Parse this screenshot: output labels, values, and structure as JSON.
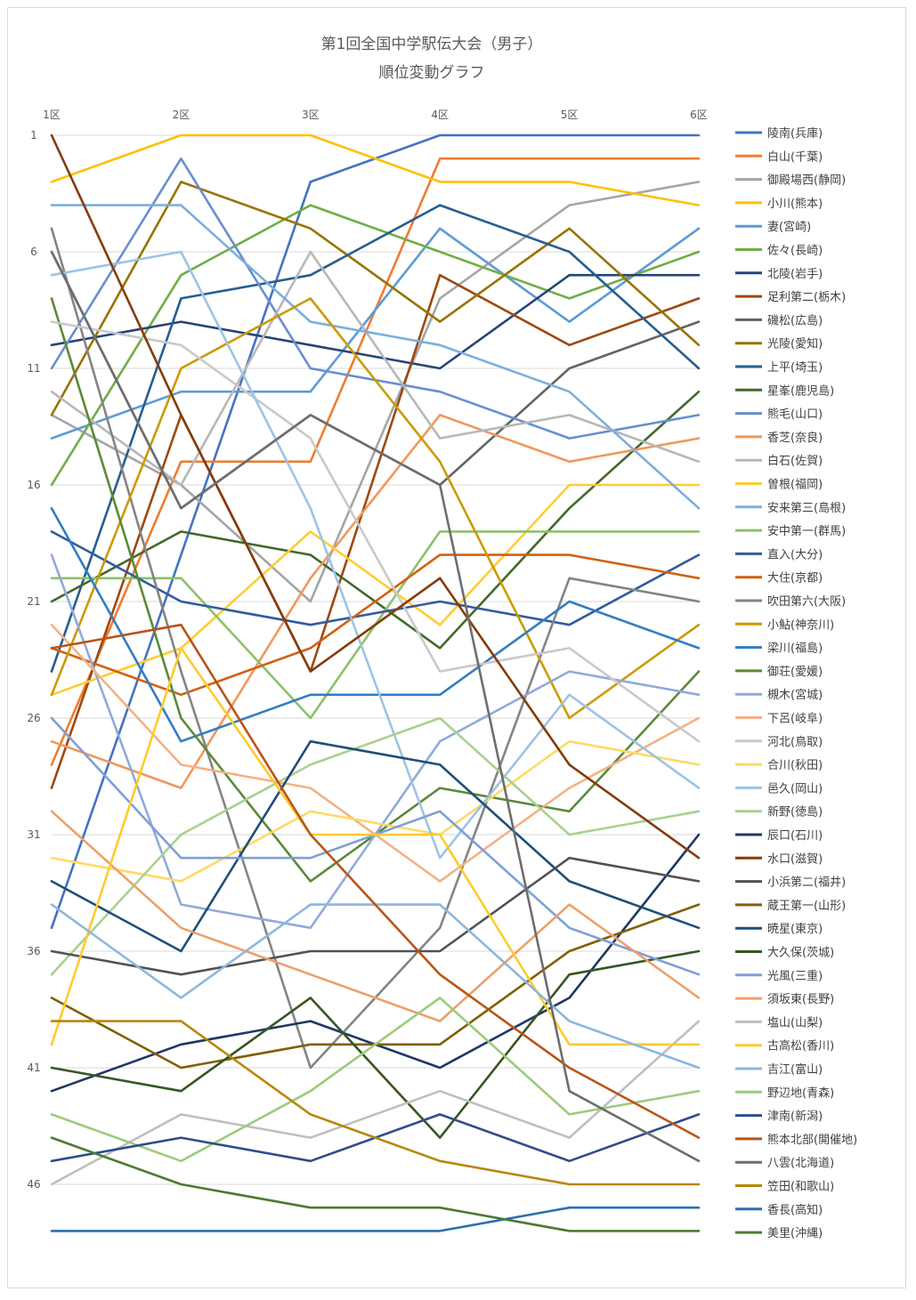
{
  "chart_data": {
    "type": "line",
    "title": "第1回全国中学駅伝大会（男子）",
    "subtitle": "順位変動グラフ",
    "categories": [
      "1区",
      "2区",
      "3区",
      "4区",
      "5区",
      "6区"
    ],
    "y_ticks": [
      1,
      6,
      11,
      16,
      21,
      26,
      31,
      36,
      41,
      46
    ],
    "ylim": [
      1,
      47
    ],
    "y_inverted": true,
    "grid": true,
    "legend_position": "right",
    "series": [
      {
        "name": "陵南(兵庫)",
        "color": "#4472C4",
        "values": [
          35,
          19,
          3,
          1,
          1,
          1
        ]
      },
      {
        "name": "白山(千葉)",
        "color": "#ED7D31",
        "values": [
          28,
          15,
          15,
          2,
          2,
          2
        ]
      },
      {
        "name": "御殿場西(静岡)",
        "color": "#A5A5A5",
        "values": [
          13,
          16,
          21,
          8,
          4,
          3
        ]
      },
      {
        "name": "小川(熊本)",
        "color": "#FFC000",
        "values": [
          3,
          1,
          1,
          3,
          3,
          4
        ]
      },
      {
        "name": "妻(宮崎)",
        "color": "#5B9BD5",
        "values": [
          14,
          12,
          12,
          5,
          9,
          5
        ]
      },
      {
        "name": "佐々(長崎)",
        "color": "#70AD47",
        "values": [
          16,
          7,
          4,
          6,
          8,
          6
        ]
      },
      {
        "name": "北陵(岩手)",
        "color": "#264478",
        "values": [
          10,
          9,
          10,
          11,
          7,
          7
        ]
      },
      {
        "name": "足利第二(栃木)",
        "color": "#9E480E",
        "values": [
          29,
          13,
          24,
          7,
          10,
          8
        ]
      },
      {
        "name": "磯松(広島)",
        "color": "#636363",
        "values": [
          6,
          17,
          13,
          16,
          11,
          9
        ]
      },
      {
        "name": "光陵(愛知)",
        "color": "#997300",
        "values": [
          13,
          3,
          5,
          9,
          5,
          10
        ]
      },
      {
        "name": "上平(埼玉)",
        "color": "#255E91",
        "values": [
          24,
          8,
          7,
          4,
          6,
          11
        ]
      },
      {
        "name": "星峯(鹿児島)",
        "color": "#43682B",
        "values": [
          21,
          18,
          19,
          23,
          17,
          12
        ]
      },
      {
        "name": "熊毛(山口)",
        "color": "#698ED0",
        "values": [
          11,
          2,
          11,
          12,
          14,
          13
        ]
      },
      {
        "name": "香芝(奈良)",
        "color": "#F1975A",
        "values": [
          27,
          29,
          20,
          13,
          15,
          14
        ]
      },
      {
        "name": "白石(佐賀)",
        "color": "#B7B7B7",
        "values": [
          12,
          16,
          6,
          14,
          13,
          15
        ]
      },
      {
        "name": "曽根(福岡)",
        "color": "#FFCD33",
        "values": [
          25,
          23,
          18,
          22,
          16,
          16
        ]
      },
      {
        "name": "安来第三(島根)",
        "color": "#7CAFDD",
        "values": [
          4,
          4,
          9,
          10,
          12,
          17
        ]
      },
      {
        "name": "安中第一(群馬)",
        "color": "#8CC168",
        "values": [
          20,
          20,
          26,
          18,
          18,
          18
        ]
      },
      {
        "name": "直入(大分)",
        "color": "#335AA1",
        "values": [
          18,
          21,
          22,
          21,
          22,
          19
        ]
      },
      {
        "name": "大住(京都)",
        "color": "#D26012",
        "values": [
          23,
          25,
          23,
          19,
          19,
          20
        ]
      },
      {
        "name": "吹田第六(大阪)",
        "color": "#848484",
        "values": [
          5,
          24,
          41,
          35,
          20,
          21
        ]
      },
      {
        "name": "小鮎(神奈川)",
        "color": "#CC9A00",
        "values": [
          25,
          11,
          8,
          15,
          26,
          22
        ]
      },
      {
        "name": "梁川(福島)",
        "color": "#327DC2",
        "values": [
          17,
          27,
          25,
          25,
          21,
          23
        ]
      },
      {
        "name": "御荘(愛媛)",
        "color": "#5A8A39",
        "values": [
          8,
          26,
          33,
          29,
          30,
          24
        ]
      },
      {
        "name": "槻木(宮城)",
        "color": "#8FAADC",
        "values": [
          19,
          34,
          35,
          27,
          24,
          25
        ]
      },
      {
        "name": "下呂(岐阜)",
        "color": "#F4B183",
        "values": [
          22,
          28,
          29,
          33,
          29,
          26
        ]
      },
      {
        "name": "河北(鳥取)",
        "color": "#C9C9C9",
        "values": [
          9,
          10,
          14,
          24,
          23,
          27
        ]
      },
      {
        "name": "合川(秋田)",
        "color": "#FFD966",
        "values": [
          32,
          33,
          30,
          31,
          27,
          28
        ]
      },
      {
        "name": "邑久(岡山)",
        "color": "#9DC3E6",
        "values": [
          7,
          6,
          17,
          32,
          25,
          29
        ]
      },
      {
        "name": "新野(徳島)",
        "color": "#A9D18E",
        "values": [
          37,
          31,
          28,
          26,
          31,
          30
        ]
      },
      {
        "name": "辰口(石川)",
        "color": "#1F3864",
        "values": [
          42,
          40,
          39,
          41,
          38,
          31
        ]
      },
      {
        "name": "水口(滋賀)",
        "color": "#843C0C",
        "values": [
          1,
          13,
          24,
          20,
          28,
          32
        ]
      },
      {
        "name": "小浜第二(福井)",
        "color": "#525252",
        "values": [
          36,
          37,
          36,
          36,
          32,
          33
        ]
      },
      {
        "name": "蔵王第一(山形)",
        "color": "#7F6000",
        "values": [
          38,
          41,
          40,
          40,
          36,
          34
        ]
      },
      {
        "name": "暁星(東京)",
        "color": "#1F4E79",
        "values": [
          33,
          36,
          27,
          28,
          33,
          35
        ]
      },
      {
        "name": "大久保(茨城)",
        "color": "#375623",
        "values": [
          41,
          42,
          38,
          44,
          37,
          36
        ]
      },
      {
        "name": "光風(三重)",
        "color": "#7F9FD6",
        "values": [
          26,
          32,
          32,
          30,
          35,
          37
        ]
      },
      {
        "name": "須坂東(長野)",
        "color": "#EE9F6A",
        "values": [
          30,
          35,
          37,
          39,
          34,
          38
        ]
      },
      {
        "name": "塩山(山梨)",
        "color": "#BFBFBF",
        "values": [
          46,
          43,
          44,
          42,
          44,
          39
        ]
      },
      {
        "name": "古高松(香川)",
        "color": "#FFCA2C",
        "values": [
          40,
          23,
          31,
          31,
          40,
          40
        ]
      },
      {
        "name": "吉江(富山)",
        "color": "#8DB6DF",
        "values": [
          34,
          38,
          34,
          34,
          39,
          41
        ]
      },
      {
        "name": "野辺地(青森)",
        "color": "#9ACC7A",
        "values": [
          43,
          45,
          42,
          38,
          43,
          42
        ]
      },
      {
        "name": "津南(新潟)",
        "color": "#2E4D8A",
        "values": [
          45,
          44,
          45,
          43,
          45,
          43
        ]
      },
      {
        "name": "熊本北部(開催地)",
        "color": "#BA5416",
        "values": [
          23,
          22,
          31,
          37,
          41,
          44
        ]
      },
      {
        "name": "八雲(北海道)",
        "color": "#6E6E6E",
        "values": [
          6,
          17,
          13,
          16,
          42,
          45
        ]
      },
      {
        "name": "笠田(和歌山)",
        "color": "#B8860B",
        "values": [
          39,
          39,
          43,
          45,
          46,
          46
        ]
      },
      {
        "name": "香長(高知)",
        "color": "#2A6FAF",
        "values": [
          48,
          48,
          48,
          48,
          47,
          47
        ]
      },
      {
        "name": "美里(沖縄)",
        "color": "#4C7A32",
        "values": [
          44,
          46,
          47,
          47,
          48,
          48
        ]
      }
    ]
  }
}
